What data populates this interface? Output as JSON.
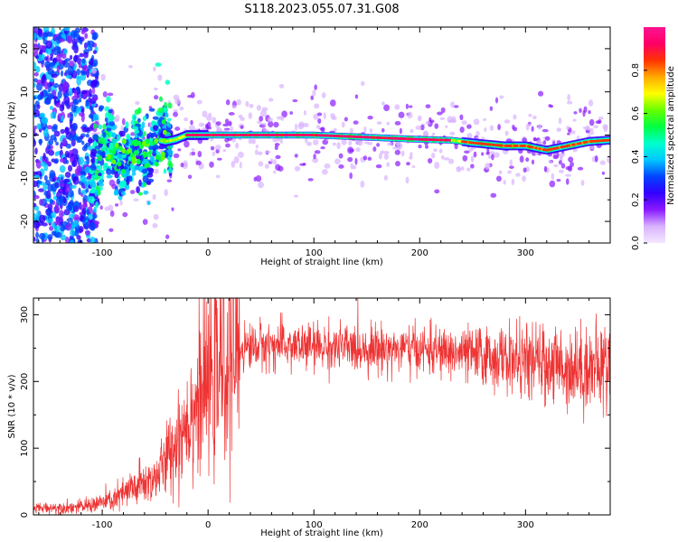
{
  "figure": {
    "title": "S118.2023.055.07.31.G08"
  },
  "chart_data": [
    {
      "type": "heatmap",
      "xlabel": "Height of straight line (km)",
      "ylabel": "Frequency (Hz)",
      "xlim": [
        -165,
        380
      ],
      "ylim": [
        -25,
        25
      ],
      "x_ticks": [
        -100,
        0,
        100,
        200,
        300
      ],
      "y_ticks": [
        -20,
        -10,
        0,
        10,
        20
      ],
      "grid": false,
      "ridge": {
        "x": [
          -90,
          -80,
          -70,
          -60,
          -50,
          -40,
          -30,
          -20,
          0,
          50,
          100,
          150,
          200,
          230,
          250,
          280,
          300,
          320,
          340,
          360,
          378
        ],
        "y": [
          -5,
          -4,
          -5,
          -3,
          -1,
          -1.5,
          -1,
          0,
          0,
          0,
          0,
          -0.5,
          -1,
          -1.2,
          -1.8,
          -2.5,
          -2.5,
          -3.5,
          -2.5,
          -1.5,
          -1.2
        ]
      },
      "colorbar": {
        "label": "Normalized spectral amplitude",
        "range": [
          0,
          1
        ],
        "ticks": [
          "0.0",
          "0.2",
          "0.4",
          "0.6",
          "0.8"
        ],
        "colors": [
          "#f4e8ff",
          "#d9b3ff",
          "#8a1aff",
          "#3300ff",
          "#0044ff",
          "#00c8ff",
          "#00ffcc",
          "#00ff44",
          "#66ff00",
          "#ffff00",
          "#ffaa00",
          "#ff3300",
          "#ff0066",
          "#ff1493"
        ]
      }
    },
    {
      "type": "line",
      "xlabel": "Height of straight line (km)",
      "ylabel": "SNR (10 * v/v)",
      "xlim": [
        -165,
        380
      ],
      "ylim": [
        0,
        325
      ],
      "x_ticks": [
        -100,
        0,
        100,
        200,
        300
      ],
      "y_ticks": [
        0,
        100,
        200,
        300
      ],
      "grid": false,
      "color": "#ee3333",
      "trend": {
        "x": [
          -165,
          -120,
          -90,
          -70,
          -50,
          -40,
          -30,
          -20,
          -10,
          0,
          10,
          20,
          30,
          50,
          100,
          150,
          200,
          250,
          300,
          350,
          380
        ],
        "y": [
          10,
          12,
          22,
          40,
          55,
          80,
          110,
          145,
          170,
          195,
          215,
          235,
          250,
          255,
          252,
          250,
          248,
          240,
          230,
          220,
          222
        ]
      }
    }
  ]
}
